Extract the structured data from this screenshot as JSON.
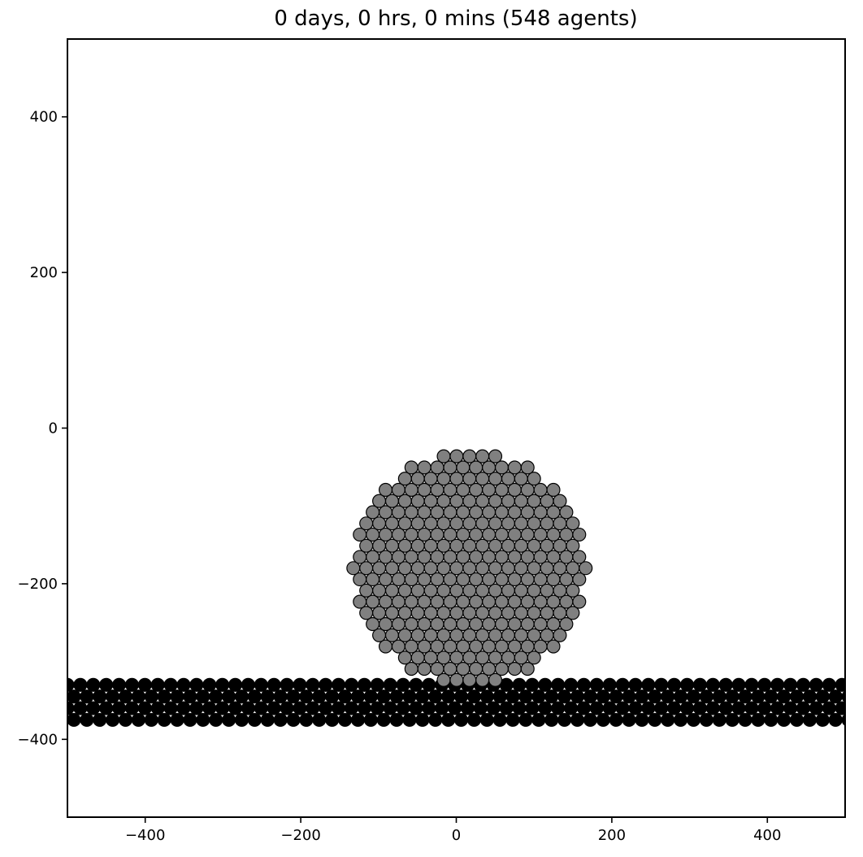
{
  "chart_data": {
    "type": "scatter",
    "title": "0 days, 0 hrs, 0 mins (548 agents)",
    "xlabel": "",
    "ylabel": "",
    "xlim": [
      -500,
      500
    ],
    "ylim": [
      -500,
      500
    ],
    "x_ticks": [
      -400,
      -200,
      0,
      200,
      400
    ],
    "y_ticks": [
      -400,
      -200,
      0,
      200,
      400
    ],
    "x_tick_labels": [
      "−400",
      "−200",
      "0",
      "200",
      "400"
    ],
    "y_tick_labels": [
      "−400",
      "−200",
      "0",
      "200",
      "400"
    ],
    "grid": false,
    "legend": "none",
    "agent_diameter": 16.6,
    "series": [
      {
        "color": "#808080",
        "edge_color": "#000000",
        "shape": "hexagonal-packed disc of agents",
        "center": [
          17,
          -180
        ],
        "radius": 152,
        "spacing": 16.6
      },
      {
        "color": "#000000",
        "edge_color": "#000000",
        "shape": "hexagonal-packed horizontal band of agents",
        "x_range": [
          -500,
          500
        ],
        "y_rows": [
          -330,
          -345,
          -360,
          -375
        ],
        "spacing": 16.6
      }
    ]
  }
}
